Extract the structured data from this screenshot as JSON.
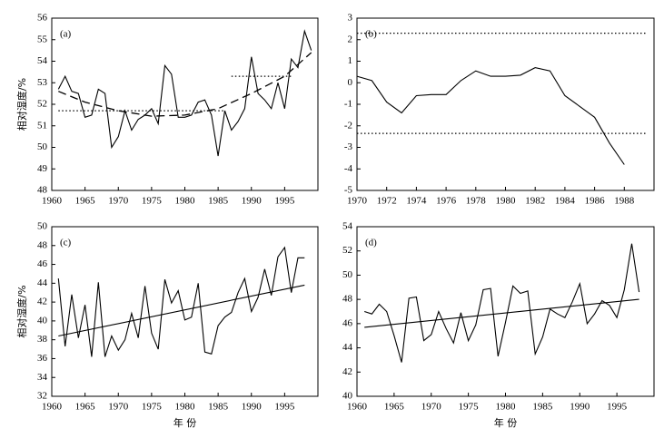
{
  "chart_data": [
    {
      "type": "line",
      "panel_label": "(a)",
      "ylabel": "相对湿度/%",
      "xlim": [
        1960,
        2000
      ],
      "xticks": [
        1960,
        1965,
        1970,
        1975,
        1980,
        1985,
        1990,
        1995
      ],
      "ylim": [
        48,
        56
      ],
      "yticks": [
        48,
        49,
        50,
        51,
        52,
        53,
        54,
        55,
        56
      ],
      "series": [
        {
          "style": "solid",
          "color": "#000000",
          "x": [
            1961,
            1962,
            1963,
            1964,
            1965,
            1966,
            1967,
            1968,
            1969,
            1970,
            1971,
            1972,
            1973,
            1974,
            1975,
            1976,
            1977,
            1978,
            1979,
            1980,
            1981,
            1982,
            1983,
            1984,
            1985,
            1986,
            1987,
            1988,
            1989,
            1990,
            1991,
            1992,
            1993,
            1994,
            1995,
            1996,
            1997,
            1998,
            1999
          ],
          "values": [
            52.7,
            53.3,
            52.6,
            52.5,
            51.4,
            51.5,
            52.7,
            52.5,
            50.0,
            50.5,
            51.7,
            50.8,
            51.3,
            51.5,
            51.8,
            51.1,
            53.8,
            53.4,
            51.4,
            51.4,
            51.5,
            52.1,
            52.2,
            51.5,
            49.6,
            51.7,
            50.8,
            51.2,
            51.8,
            54.2,
            52.5,
            52.2,
            51.8,
            53.0,
            51.8,
            54.1,
            53.7,
            55.4,
            54.5
          ]
        },
        {
          "style": "dashed",
          "color": "#000000",
          "x": [
            1961,
            1965,
            1970,
            1975,
            1980,
            1985,
            1990,
            1995,
            1999
          ],
          "values": [
            52.6,
            52.1,
            51.7,
            51.45,
            51.5,
            51.8,
            52.5,
            53.3,
            54.4
          ]
        },
        {
          "style": "dotted",
          "color": "#000000",
          "x": [
            1961,
            1986
          ],
          "values": [
            51.7,
            51.7
          ]
        },
        {
          "style": "dotted",
          "color": "#000000",
          "x": [
            1987,
            1996
          ],
          "values": [
            53.3,
            53.3
          ]
        }
      ]
    },
    {
      "type": "line",
      "panel_label": "(b)",
      "xlim": [
        1970,
        1990
      ],
      "xticks": [
        1970,
        1972,
        1974,
        1976,
        1978,
        1980,
        1982,
        1984,
        1986,
        1988
      ],
      "ylim": [
        -5,
        3
      ],
      "yticks": [
        -5,
        -4,
        -3,
        -2,
        -1,
        0,
        1,
        2,
        3
      ],
      "series": [
        {
          "style": "solid",
          "color": "#000000",
          "x": [
            1970,
            1971,
            1972,
            1973,
            1974,
            1975,
            1976,
            1977,
            1978,
            1979,
            1980,
            1981,
            1982,
            1983,
            1984,
            1985,
            1986,
            1987,
            1988
          ],
          "values": [
            0.3,
            0.1,
            -0.9,
            -1.4,
            -0.6,
            -0.55,
            -0.55,
            0.1,
            0.55,
            0.3,
            0.3,
            0.35,
            0.7,
            0.55,
            -0.6,
            -1.1,
            -1.6,
            -2.8,
            -3.8
          ]
        },
        {
          "style": "dotted",
          "color": "#000000",
          "x": [
            1970,
            1989.5
          ],
          "values": [
            2.3,
            2.3
          ]
        },
        {
          "style": "dotted",
          "color": "#000000",
          "x": [
            1970,
            1989.5
          ],
          "values": [
            -2.35,
            -2.35
          ]
        }
      ]
    },
    {
      "type": "line",
      "panel_label": "(c)",
      "ylabel": "相对湿度/%",
      "xlabel": "年 份",
      "xlim": [
        1960,
        2000
      ],
      "xticks": [
        1960,
        1965,
        1970,
        1975,
        1980,
        1985,
        1990,
        1995
      ],
      "ylim": [
        32,
        50
      ],
      "yticks": [
        32,
        34,
        36,
        38,
        40,
        42,
        44,
        46,
        48,
        50
      ],
      "series": [
        {
          "style": "solid",
          "color": "#000000",
          "x": [
            1961,
            1962,
            1963,
            1964,
            1965,
            1966,
            1967,
            1968,
            1969,
            1970,
            1971,
            1972,
            1973,
            1974,
            1975,
            1976,
            1977,
            1978,
            1979,
            1980,
            1981,
            1982,
            1983,
            1984,
            1985,
            1986,
            1987,
            1988,
            1989,
            1990,
            1991,
            1992,
            1993,
            1994,
            1995,
            1996,
            1997,
            1998
          ],
          "values": [
            44.5,
            37.3,
            42.8,
            38.2,
            41.7,
            36.2,
            44.1,
            36.2,
            38.4,
            36.9,
            38.0,
            40.8,
            38.2,
            43.7,
            38.7,
            37.0,
            44.4,
            41.9,
            43.2,
            40.1,
            40.4,
            44.0,
            36.7,
            36.5,
            39.5,
            40.4,
            40.9,
            43.0,
            44.5,
            41.0,
            42.5,
            45.5,
            42.7,
            46.8,
            47.8,
            43.0,
            46.7,
            46.7
          ]
        },
        {
          "style": "solid",
          "color": "#000000",
          "x": [
            1961,
            1998
          ],
          "values": [
            38.4,
            43.8
          ]
        }
      ]
    },
    {
      "type": "line",
      "panel_label": "(d)",
      "xlabel": "年 份",
      "xlim": [
        1960,
        2000
      ],
      "xticks": [
        1960,
        1965,
        1970,
        1975,
        1980,
        1985,
        1990,
        1995
      ],
      "ylim": [
        40,
        54
      ],
      "yticks": [
        40,
        42,
        44,
        46,
        48,
        50,
        52,
        54
      ],
      "series": [
        {
          "style": "solid",
          "color": "#000000",
          "x": [
            1961,
            1962,
            1963,
            1964,
            1965,
            1966,
            1967,
            1968,
            1969,
            1970,
            1971,
            1972,
            1973,
            1974,
            1975,
            1976,
            1977,
            1978,
            1979,
            1980,
            1981,
            1982,
            1983,
            1984,
            1985,
            1986,
            1987,
            1988,
            1989,
            1990,
            1991,
            1992,
            1993,
            1994,
            1995,
            1996,
            1997,
            1998
          ],
          "values": [
            47.0,
            46.8,
            47.6,
            47.0,
            45.0,
            42.8,
            48.1,
            48.2,
            44.6,
            45.1,
            47.0,
            45.6,
            44.4,
            46.9,
            44.6,
            45.9,
            48.8,
            48.9,
            43.3,
            46.1,
            49.1,
            48.5,
            48.7,
            43.5,
            44.9,
            47.2,
            46.8,
            46.5,
            47.8,
            49.3,
            46.0,
            46.8,
            47.9,
            47.5,
            46.5,
            48.8,
            52.6,
            48.6
          ]
        },
        {
          "style": "solid",
          "color": "#000000",
          "x": [
            1961,
            1998
          ],
          "values": [
            45.7,
            48.0
          ]
        }
      ]
    }
  ]
}
